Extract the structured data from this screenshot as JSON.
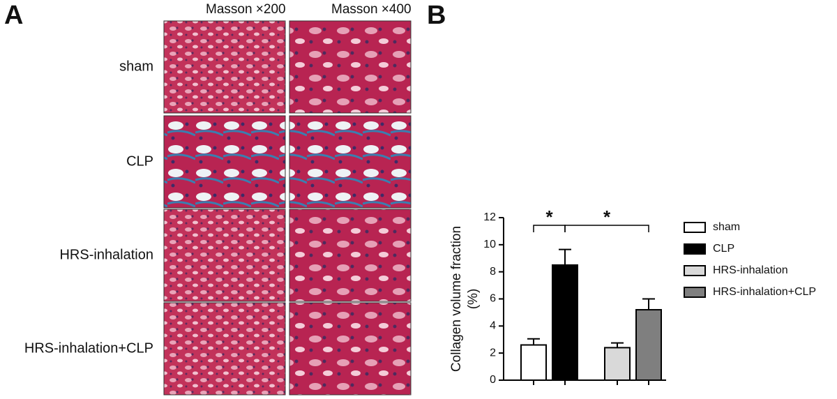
{
  "panel_a": {
    "label": "A",
    "columns": [
      "Masson ×200",
      "Masson ×400"
    ],
    "rows": [
      "sham",
      "CLP",
      "HRS-inhalation",
      "HRS-inhalation+CLP"
    ]
  },
  "panel_b": {
    "label": "B"
  },
  "chart_data": {
    "type": "bar",
    "ylabel": [
      "Collagen volume fraction",
      "(%)"
    ],
    "categories": [
      "sham",
      "CLP",
      "HRS-inhalation",
      "HRS-inhalation+CLP"
    ],
    "values": [
      2.6,
      8.5,
      2.4,
      5.2
    ],
    "errors": [
      0.45,
      1.15,
      0.35,
      0.8
    ],
    "colors": [
      "#ffffff",
      "#000000",
      "#d9d9d9",
      "#7f7f7f"
    ],
    "ylim": [
      0,
      12
    ],
    "yticks": [
      0,
      2,
      4,
      6,
      8,
      10,
      12
    ],
    "significance": [
      "*",
      "*"
    ]
  }
}
